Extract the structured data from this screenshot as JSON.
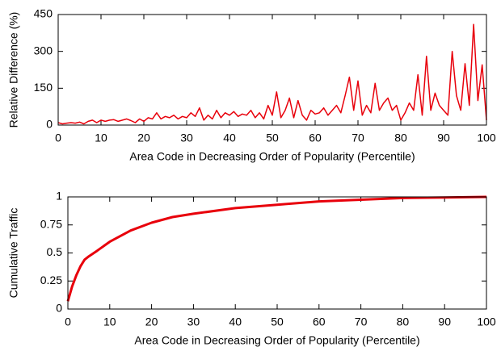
{
  "chart_data": [
    {
      "type": "line",
      "xlabel": "Area Code in Decreasing Order of Popularity (Percentile)",
      "ylabel": "Relative Difference (%)",
      "x": [
        0,
        1,
        2,
        3,
        4,
        5,
        6,
        7,
        8,
        9,
        10,
        11,
        12,
        13,
        14,
        15,
        16,
        17,
        18,
        19,
        20,
        21,
        22,
        23,
        24,
        25,
        26,
        27,
        28,
        29,
        30,
        31,
        32,
        33,
        34,
        35,
        36,
        37,
        38,
        39,
        40,
        41,
        42,
        43,
        44,
        45,
        46,
        47,
        48,
        49,
        50,
        51,
        52,
        53,
        54,
        55,
        56,
        57,
        58,
        59,
        60,
        61,
        62,
        63,
        64,
        65,
        66,
        67,
        68,
        69,
        70,
        71,
        72,
        73,
        74,
        75,
        76,
        77,
        78,
        79,
        80,
        81,
        82,
        83,
        84,
        85,
        86,
        87,
        88,
        89,
        90,
        91,
        92,
        93,
        94,
        95,
        96,
        97,
        98,
        99,
        100
      ],
      "series": [
        {
          "color": "#e8000b",
          "values": [
            10,
            5,
            8,
            10,
            8,
            12,
            5,
            15,
            20,
            10,
            20,
            15,
            20,
            22,
            15,
            20,
            25,
            18,
            10,
            25,
            15,
            30,
            25,
            50,
            25,
            35,
            30,
            40,
            25,
            35,
            30,
            50,
            35,
            70,
            20,
            40,
            25,
            60,
            30,
            50,
            40,
            55,
            35,
            45,
            40,
            60,
            30,
            50,
            25,
            80,
            40,
            135,
            30,
            60,
            110,
            30,
            100,
            40,
            20,
            60,
            45,
            50,
            70,
            40,
            60,
            80,
            50,
            120,
            195,
            60,
            180,
            40,
            80,
            50,
            170,
            60,
            90,
            110,
            60,
            80,
            20,
            50,
            90,
            60,
            205,
            40,
            280,
            60,
            130,
            80,
            60,
            40,
            300,
            120,
            60,
            250,
            80,
            410,
            100,
            245,
            20
          ]
        }
      ],
      "xlim": [
        0,
        100
      ],
      "ylim": [
        0,
        450
      ],
      "xticks": [
        0,
        10,
        20,
        30,
        40,
        50,
        60,
        70,
        80,
        90,
        100
      ],
      "yticks": [
        0,
        150,
        300,
        450
      ]
    },
    {
      "type": "line",
      "xlabel": "Area Code in Decreasing Order of Popularity (Percentile)",
      "ylabel": "Cumulative Traffic",
      "x": [
        0,
        1,
        2,
        3,
        4,
        5,
        7,
        10,
        15,
        20,
        25,
        30,
        40,
        50,
        60,
        70,
        80,
        90,
        100
      ],
      "series": [
        {
          "color": "#e8000b",
          "values": [
            0.07,
            0.2,
            0.3,
            0.38,
            0.44,
            0.47,
            0.52,
            0.6,
            0.7,
            0.77,
            0.82,
            0.85,
            0.9,
            0.93,
            0.96,
            0.975,
            0.99,
            0.995,
            1
          ]
        }
      ],
      "xlim": [
        0,
        100
      ],
      "ylim": [
        0,
        1
      ],
      "xticks": [
        0,
        10,
        20,
        30,
        40,
        50,
        60,
        70,
        80,
        90,
        100
      ],
      "yticks": [
        0,
        0.25,
        0.5,
        0.75,
        1
      ]
    }
  ]
}
